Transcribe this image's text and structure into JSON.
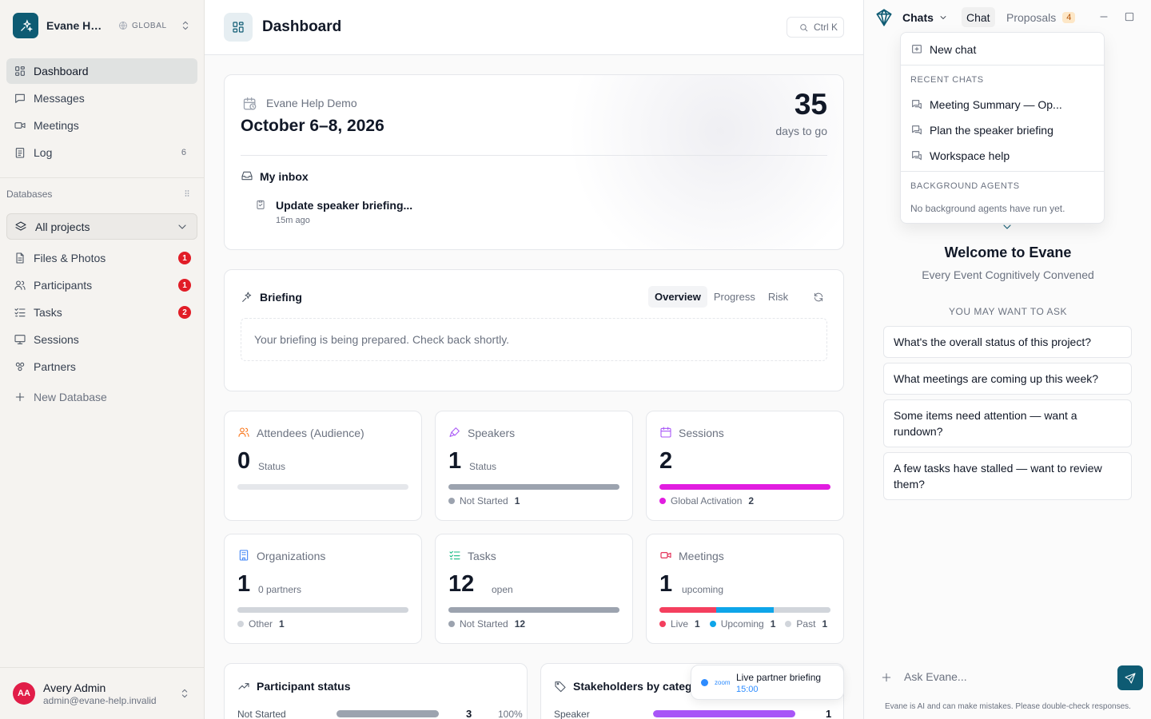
{
  "sidebar": {
    "workspace_name": "Evane Help Demo",
    "workspace_scope": "GLOBAL",
    "nav": [
      {
        "label": "Dashboard",
        "count": ""
      },
      {
        "label": "Messages",
        "count": ""
      },
      {
        "label": "Meetings",
        "count": ""
      },
      {
        "label": "Log",
        "count": "6"
      }
    ],
    "databases_label": "Databases",
    "project_select": "All projects",
    "db_items": [
      {
        "label": "Files & Photos",
        "badge": "1"
      },
      {
        "label": "Participants",
        "badge": "1"
      },
      {
        "label": "Tasks",
        "badge": "2"
      },
      {
        "label": "Sessions",
        "badge": ""
      },
      {
        "label": "Partners",
        "badge": ""
      }
    ],
    "new_database": "New Database",
    "user": {
      "initials": "AA",
      "name": "Avery Admin",
      "email": "admin@evane-help.invalid"
    }
  },
  "header": {
    "title": "Dashboard",
    "search_shortcut": "Ctrl K"
  },
  "event": {
    "name": "Evane Help Demo",
    "dates": "October 6–8, 2026",
    "days_count": "35",
    "days_label": "days to go",
    "inbox_label": "My inbox",
    "inbox_item": "Update speaker briefing...",
    "inbox_time": "15m ago"
  },
  "briefing": {
    "label": "Briefing",
    "tabs": [
      "Overview",
      "Progress",
      "Risk"
    ],
    "active_tab": "Overview",
    "empty": "Your briefing is being prepared. Check back shortly."
  },
  "stats": [
    {
      "label": "Attendees (Audience)",
      "value": "0",
      "sub": "Status",
      "icon": "users-icon",
      "color": "#f97316",
      "segments": [],
      "legend": []
    },
    {
      "label": "Speakers",
      "value": "1",
      "sub": "Status",
      "icon": "mic-icon",
      "color": "#a855f7",
      "segments": [
        {
          "color": "#9ca3af",
          "share": 1
        }
      ],
      "legend": [
        {
          "label": "Not Started",
          "count": "1",
          "color": "#9ca3af"
        }
      ]
    },
    {
      "label": "Sessions",
      "value": "2",
      "sub": "",
      "icon": "calendar-icon",
      "color": "#a855f7",
      "segments": [
        {
          "color": "#e11de0",
          "share": 1
        }
      ],
      "legend": [
        {
          "label": "Global Activation",
          "count": "2",
          "color": "#e11de0"
        }
      ]
    },
    {
      "label": "Organizations",
      "value": "1",
      "sub": "0 partners",
      "icon": "building-icon",
      "color": "#3b82f6",
      "segments": [
        {
          "color": "#d1d5db",
          "share": 1
        }
      ],
      "legend": [
        {
          "label": "Other",
          "count": "1",
          "color": "#d1d5db"
        }
      ]
    },
    {
      "label": "Tasks",
      "value": "12",
      "sub": "open",
      "icon": "list-check-icon",
      "color": "#10b981",
      "segments": [
        {
          "color": "#9ca3af",
          "share": 1
        }
      ],
      "legend": [
        {
          "label": "Not Started",
          "count": "12",
          "color": "#9ca3af"
        }
      ]
    },
    {
      "label": "Meetings",
      "value": "1",
      "sub": "upcoming",
      "icon": "video-icon",
      "color": "#e11d48",
      "segments": [
        {
          "color": "#f43f5e",
          "share": 0.333
        },
        {
          "color": "#0ea5e9",
          "share": 0.333
        },
        {
          "color": "#d1d5db",
          "share": 0.334
        }
      ],
      "legend": [
        {
          "label": "Live",
          "count": "1",
          "color": "#f43f5e"
        },
        {
          "label": "Upcoming",
          "count": "1",
          "color": "#0ea5e9"
        },
        {
          "label": "Past",
          "count": "1",
          "color": "#d1d5db"
        }
      ]
    }
  ],
  "participant_status": {
    "label": "Participant status",
    "row_label": "Not Started",
    "count": "3",
    "percent": "100%",
    "share": 1
  },
  "stakeholders": {
    "label": "Stakeholders by category",
    "row_label": "Speaker",
    "count": "1",
    "share": 0.9
  },
  "toast": {
    "title": "Live partner briefing",
    "time": "15:00",
    "badge": "zoom"
  },
  "panel": {
    "chats_label": "Chats",
    "tab_chat": "Chat",
    "tab_proposals": "Proposals",
    "proposals_count": "4",
    "menu": {
      "new_chat": "New chat",
      "recent_heading": "RECENT CHATS",
      "recent": [
        "Meeting Summary — Op...",
        "Plan the speaker briefing",
        "Workspace help"
      ],
      "agents_heading": "BACKGROUND AGENTS",
      "agents_empty": "No background agents have run yet."
    },
    "welcome": "Welcome to Evane",
    "tagline": "Every Event Cognitively Convened",
    "ask_heading": "YOU MAY WANT TO ASK",
    "suggestions": [
      "What's the overall status of this project?",
      "What meetings are coming up this week?",
      "Some items need attention — want a rundown?",
      "A few tasks have stalled — want to review them?"
    ],
    "input_placeholder": "Ask Evane...",
    "disclaimer": "Evane is AI and can make mistakes. Please double-check responses."
  },
  "colors": {
    "brand": "#0e5b73",
    "badge": "#e11d27"
  }
}
